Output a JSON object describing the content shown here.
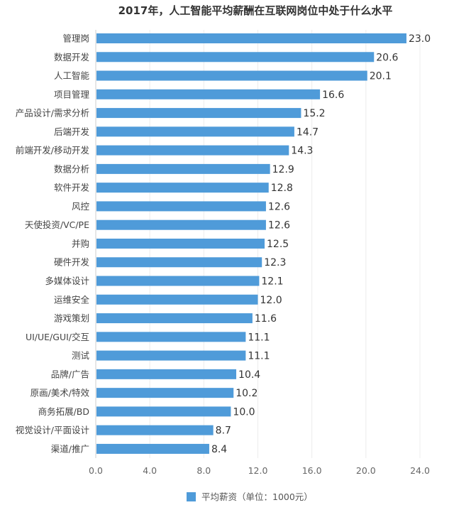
{
  "chart_data": {
    "type": "bar",
    "orientation": "horizontal",
    "title": "2017年，人工智能平均薪酬在互联网岗位中处于什么水平",
    "categories": [
      "管理岗",
      "数据开发",
      "人工智能",
      "项目管理",
      "产品设计/需求分析",
      "后端开发",
      "前端开发/移动开发",
      "数据分析",
      "软件开发",
      "风控",
      "天使投资/VC/PE",
      "并购",
      "硬件开发",
      "多媒体设计",
      "运维安全",
      "游戏策划",
      "UI/UE/GUI/交互",
      "测试",
      "品牌/广告",
      "原画/美术/特效",
      "商务拓展/BD",
      "视觉设计/平面设计",
      "渠道/推广"
    ],
    "series": [
      {
        "name": "平均薪资（单位：1000元）",
        "values": [
          23.0,
          20.6,
          20.1,
          16.6,
          15.2,
          14.7,
          14.3,
          12.9,
          12.8,
          12.6,
          12.6,
          12.5,
          12.3,
          12.1,
          12.0,
          11.6,
          11.1,
          11.1,
          10.4,
          10.2,
          10.0,
          8.7,
          8.4
        ],
        "color": "#4f9bd9"
      }
    ],
    "xlim": [
      0,
      24
    ],
    "xticks": [
      "0.0",
      "4.0",
      "8.0",
      "12.0",
      "16.0",
      "20.0",
      "24.0"
    ],
    "xlabel": "",
    "ylabel": "",
    "grid": "vertical",
    "legend": "bottom"
  }
}
